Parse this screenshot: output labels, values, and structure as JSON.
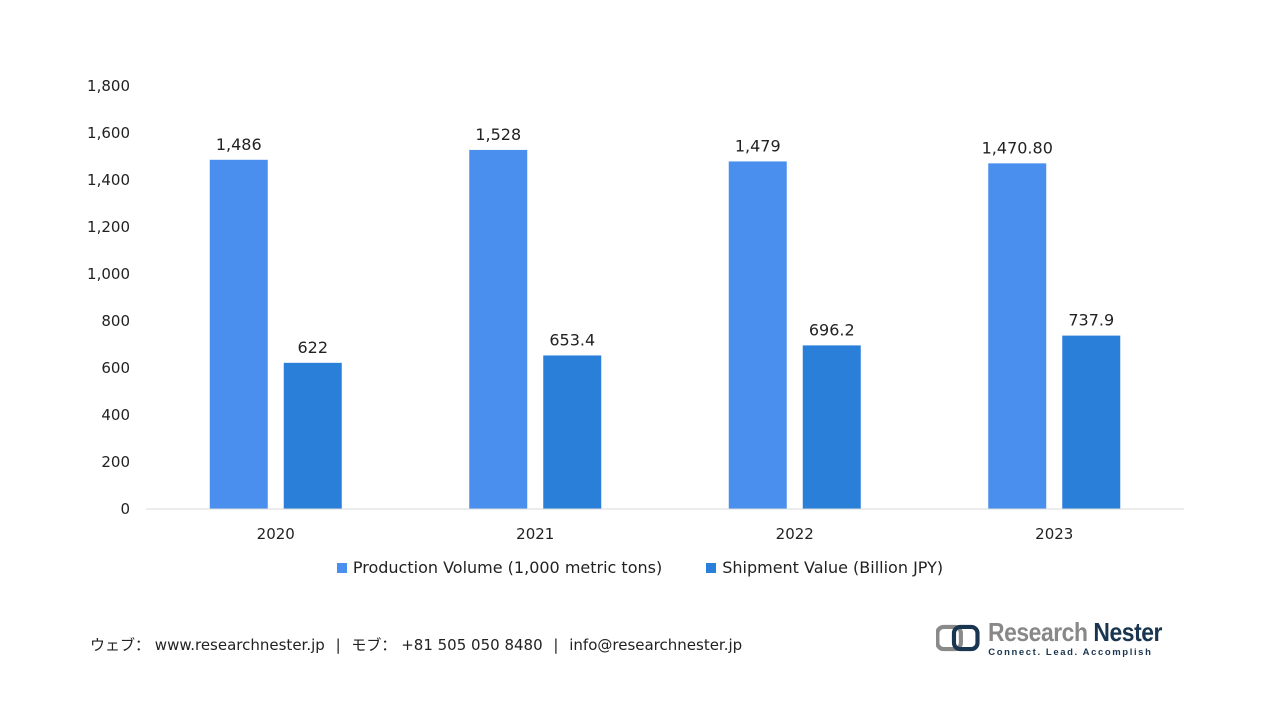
{
  "chart_data": {
    "type": "bar",
    "categories": [
      "2020",
      "2021",
      "2022",
      "2023"
    ],
    "series": [
      {
        "name": "Production Volume (1,000 metric tons)",
        "color": "#4a8eee",
        "values": [
          1486,
          1528,
          1479,
          1470.8
        ],
        "labels": [
          "1,486",
          "1,528",
          "1,479",
          "1,470.80"
        ]
      },
      {
        "name": "Shipment Value (Billion JPY)",
        "color": "#2a7fd8",
        "values": [
          622,
          653.4,
          696.2,
          737.9
        ],
        "labels": [
          "622",
          "653.4",
          "696.2",
          "737.9"
        ]
      }
    ],
    "ylim": [
      0,
      1800
    ],
    "yticks": [
      0,
      200,
      400,
      600,
      800,
      1000,
      1200,
      1400,
      1600,
      1800
    ],
    "ytick_labels": [
      "0",
      "200",
      "400",
      "600",
      "800",
      "1,000",
      "1,200",
      "1,400",
      "1,600",
      "1,800"
    ],
    "grid": false,
    "legend_position": "bottom"
  },
  "footer": {
    "web_label": "ウェブ：",
    "web_url": "www.researchnester.jp",
    "phone_label": "モブ：",
    "phone": "+81 505 050 8480",
    "email": "info@researchnester.jp"
  },
  "logo": {
    "name_part1": "Research ",
    "name_part2": "Nester",
    "tagline": "Connect. Lead. Accomplish"
  }
}
